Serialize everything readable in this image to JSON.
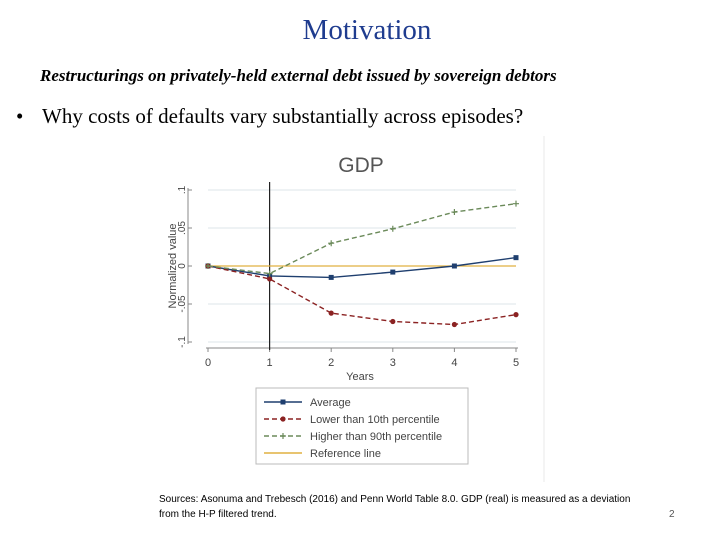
{
  "slide": {
    "title": "Motivation",
    "subtitle": "Restructurings on privately-held external debt issued by sovereign debtors",
    "bullet": "Why costs of defaults vary substantially across episodes?",
    "bullet_symbol": "•",
    "sources": "Sources: Asonuma and Trebesch (2016) and Penn World Table 8.0. GDP (real) is measured as a deviation from the H-P filtered trend.",
    "page_number": "2"
  },
  "chart_data": {
    "type": "line",
    "title": "GDP",
    "xlabel": "Years",
    "ylabel": "Normalized value",
    "x": [
      0,
      1,
      2,
      3,
      4,
      5
    ],
    "xlim": [
      0,
      5
    ],
    "ylim": [
      -0.1,
      0.1
    ],
    "x_ticks": [
      "0",
      "1",
      "2",
      "3",
      "4",
      "5"
    ],
    "y_ticks": [
      "-.1",
      "-.05",
      "0",
      ".05",
      ".1"
    ],
    "y_tick_values": [
      -0.1,
      -0.05,
      0,
      0.05,
      0.1
    ],
    "vertical_line_x": 1,
    "legend_position": "bottom",
    "series": [
      {
        "name": "Average",
        "values": [
          0,
          -0.013,
          -0.015,
          -0.008,
          0,
          0.011
        ],
        "color": "#1f3f6f",
        "marker": "square",
        "dash": "solid"
      },
      {
        "name": "Lower than 10th percentile",
        "values": [
          0,
          -0.017,
          -0.062,
          -0.073,
          -0.077,
          -0.064
        ],
        "color": "#8b2222",
        "marker": "circle",
        "dash": "dashed"
      },
      {
        "name": "Higher than 90th percentile",
        "values": [
          0,
          -0.01,
          0.03,
          0.049,
          0.071,
          0.082
        ],
        "color": "#6b8a5a",
        "marker": "plus",
        "dash": "dashed"
      },
      {
        "name": "Reference line",
        "values": [
          0,
          0,
          0,
          0,
          0,
          0
        ],
        "color": "#e0b040",
        "marker": "none",
        "dash": "solid"
      }
    ]
  }
}
